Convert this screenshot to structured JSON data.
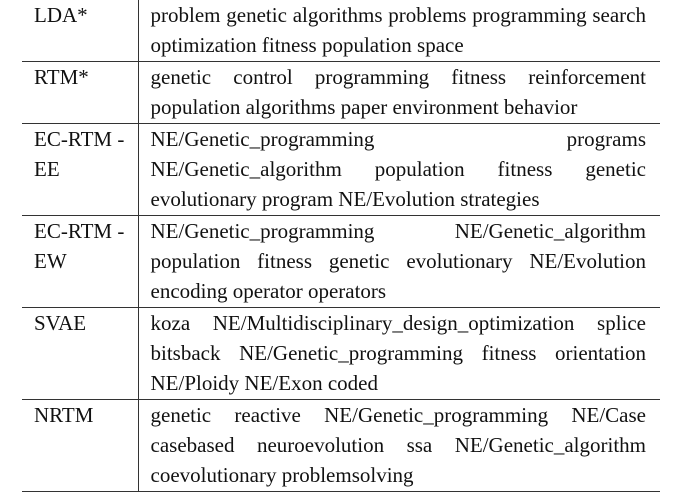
{
  "table": {
    "rows": [
      {
        "model": "LDA*",
        "topics": "problem genetic algorithms problems programming search optimization fitness population space"
      },
      {
        "model": "RTM*",
        "topics": "genetic control programming fitness reinforcement population algorithms paper environment behavior"
      },
      {
        "model": "EC-RTM -EE",
        "topics": "NE/Genetic_programming programs NE/Genetic_algorithm population fitness genetic evolutionary program NE/Evolution strategies"
      },
      {
        "model": "EC-RTM -EW",
        "topics": "NE/Genetic_programming NE/Genetic_algorithm population fitness genetic evolutionary NE/Evolution encoding operator operators"
      },
      {
        "model": "SVAE",
        "topics": "koza NE/Multidisciplinary_design_optimization splice bitsback NE/Genetic_programming fitness orientation NE/Ploidy NE/Exon coded"
      },
      {
        "model": "NRTM",
        "topics": "genetic reactive NE/Genetic_programming NE/Case casebased neuroevolution ssa NE/Genetic_algorithm coevolutionary problemsolving"
      }
    ]
  }
}
